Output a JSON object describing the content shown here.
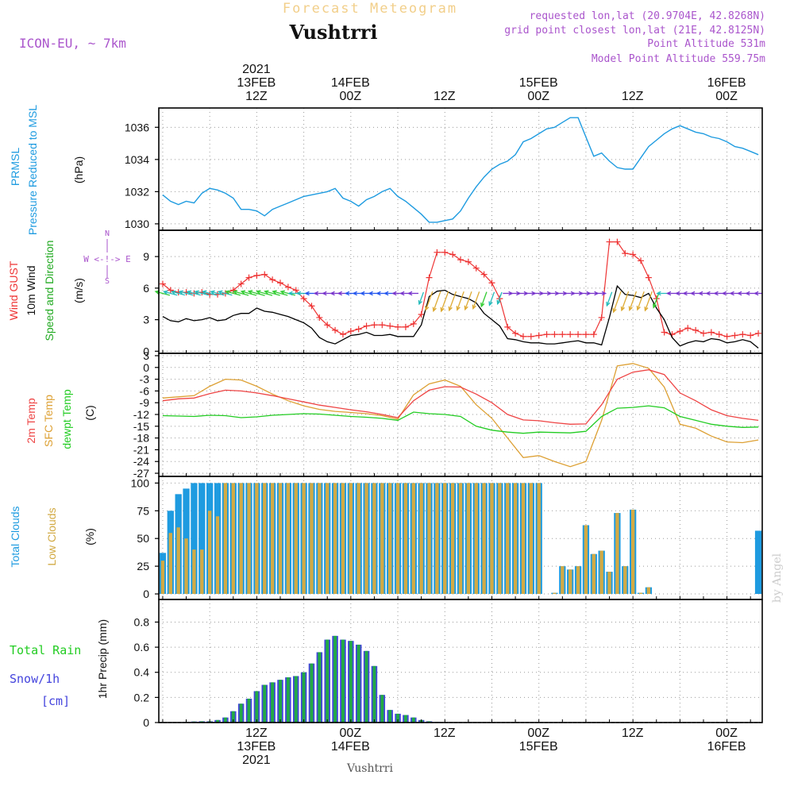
{
  "header": {
    "top_caption": "Forecast Meteogram",
    "location": "Vushtrri",
    "model": "ICON-EU, ~ 7km",
    "requested": "requested lon,lat (20.9704E, 42.8268N)",
    "grid_point": "grid point closest lon,lat (21E, 42.8125N)",
    "point_altitude": "Point Altitude 531m",
    "model_altitude": "Model Point Altitude 559.75m",
    "footer_location": "Vushtrri",
    "watermark": "by Angel"
  },
  "colors": {
    "pressure": "#1e9be0",
    "gust": "#ee3333",
    "wind": "#000000",
    "t2m": "#ee4444",
    "tsfc": "#dda033",
    "dewpt": "#22cc22",
    "total_clouds": "#1e9be0",
    "low_clouds": "#d2aa44",
    "precip": "#22aa44",
    "snow": "#4444dd",
    "annotation": "#aa55cc"
  },
  "time_axis": {
    "top_labels": [
      {
        "h": 12,
        "lines": [
          "2021",
          "13FEB",
          "12Z"
        ]
      },
      {
        "h": 24,
        "lines": [
          "14FEB",
          "00Z"
        ]
      },
      {
        "h": 36,
        "lines": [
          "12Z"
        ]
      },
      {
        "h": 48,
        "lines": [
          "15FEB",
          "00Z"
        ]
      },
      {
        "h": 60,
        "lines": [
          "12Z"
        ]
      },
      {
        "h": 72,
        "lines": [
          "16FEB",
          "00Z"
        ]
      }
    ],
    "bottom_labels": [
      {
        "h": 12,
        "lines": [
          "12Z",
          "13FEB",
          "2021"
        ]
      },
      {
        "h": 24,
        "lines": [
          "00Z",
          "14FEB"
        ]
      },
      {
        "h": 36,
        "lines": [
          "12Z"
        ]
      },
      {
        "h": 48,
        "lines": [
          "00Z",
          "15FEB"
        ]
      },
      {
        "h": 60,
        "lines": [
          "12Z"
        ]
      },
      {
        "h": 72,
        "lines": [
          "00Z",
          "16FEB"
        ]
      }
    ]
  },
  "panel_labels": {
    "pressure": {
      "name": "PRMSL",
      "desc": "Pressure Reduced to MSL",
      "unit": "(hPa)"
    },
    "wind": {
      "gust": "Wind GUST",
      "wind10": "10m Wind",
      "dir": "Speed and Direction",
      "unit": "(m/s)",
      "compass_n": "N",
      "compass_s": "S",
      "compass_we": "W <-!-> E"
    },
    "temp": {
      "t2m": "2m Temp",
      "tsfc": "SFC Temp",
      "dewpt": "dewpt Temp",
      "unit": "(C)"
    },
    "clouds": {
      "total": "Total Clouds",
      "low": "Low Clouds",
      "unit": "(%)"
    },
    "precip": {
      "rain": "Total Rain",
      "snow": "Snow/1h",
      "snow_unit": "[cm]",
      "ylabel": "1hr Precip (mm)"
    }
  },
  "chart_data": [
    {
      "type": "line",
      "name": "pressure",
      "ylabel": "(hPa)",
      "ylim": [
        1029.6,
        1037.2
      ],
      "yticks": [
        1030,
        1032,
        1034,
        1036
      ],
      "x": [
        0,
        1,
        2,
        3,
        4,
        5,
        6,
        7,
        8,
        9,
        10,
        11,
        12,
        13,
        14,
        15,
        16,
        17,
        18,
        19,
        20,
        21,
        22,
        23,
        24,
        25,
        26,
        27,
        28,
        29,
        30,
        31,
        32,
        33,
        34,
        35,
        36,
        37,
        38,
        39,
        40,
        41,
        42,
        43,
        44,
        45,
        46,
        47,
        48,
        49,
        50,
        51,
        52,
        53,
        54,
        55,
        56,
        57,
        58,
        59,
        60,
        61,
        62,
        63,
        64,
        65,
        66,
        67,
        68,
        69,
        70,
        71,
        72,
        73,
        74,
        75,
        76
      ],
      "series": [
        {
          "values": [
            1031.8,
            1031.4,
            1031.2,
            1031.4,
            1031.3,
            1031.9,
            1032.2,
            1032.1,
            1031.9,
            1031.6,
            1030.9,
            1030.9,
            1030.8,
            1030.5,
            1030.9,
            1031.1,
            1031.3,
            1031.5,
            1031.7,
            1031.8,
            1031.9,
            1032.0,
            1032.2,
            1031.6,
            1031.4,
            1031.1,
            1031.5,
            1031.7,
            1032.0,
            1032.2,
            1031.7,
            1031.4,
            1031.0,
            1030.6,
            1030.1,
            1030.1,
            1030.2,
            1030.3,
            1030.8,
            1031.6,
            1032.3,
            1032.9,
            1033.4,
            1033.7,
            1033.9,
            1034.3,
            1035.1,
            1035.3,
            1035.6,
            1035.9,
            1036.0,
            1036.3,
            1036.6,
            1036.6,
            1035.4,
            1034.2,
            1034.4,
            1033.9,
            1033.5,
            1033.4,
            1033.4,
            1034.1,
            1034.8,
            1035.2,
            1035.6,
            1035.9,
            1036.1,
            1035.9,
            1035.7,
            1035.6,
            1035.4,
            1035.3,
            1035.1,
            1034.8,
            1034.7,
            1034.5,
            1034.3
          ]
        }
      ]
    },
    {
      "type": "line",
      "name": "wind",
      "ylabel": "(m/s)",
      "ylim": [
        -0.2,
        11.5
      ],
      "yticks": [
        0,
        3,
        6,
        9
      ],
      "x": [
        0,
        1,
        2,
        3,
        4,
        5,
        6,
        7,
        8,
        9,
        10,
        11,
        12,
        13,
        14,
        15,
        16,
        17,
        18,
        19,
        20,
        21,
        22,
        23,
        24,
        25,
        26,
        27,
        28,
        29,
        30,
        31,
        32,
        33,
        34,
        35,
        36,
        37,
        38,
        39,
        40,
        41,
        42,
        43,
        44,
        45,
        46,
        47,
        48,
        49,
        50,
        51,
        52,
        53,
        54,
        55,
        56,
        57,
        58,
        59,
        60,
        61,
        62,
        63,
        64,
        65,
        66,
        67,
        68,
        69,
        70,
        71,
        72,
        73,
        74,
        75,
        76
      ],
      "series": [
        {
          "values": [
            6.4,
            5.8,
            5.6,
            5.6,
            5.5,
            5.6,
            5.4,
            5.4,
            5.5,
            5.8,
            6.4,
            7.0,
            7.2,
            7.3,
            6.8,
            6.5,
            6.1,
            5.8,
            5.0,
            4.3,
            3.2,
            2.5,
            2.0,
            1.6,
            1.9,
            2.1,
            2.4,
            2.5,
            2.5,
            2.4,
            2.3,
            2.3,
            2.6,
            3.5,
            7.0,
            9.4,
            9.4,
            9.2,
            8.7,
            8.5,
            7.9,
            7.3,
            6.5,
            5.0,
            2.3,
            1.7,
            1.4,
            1.4,
            1.5,
            1.6,
            1.6,
            1.6,
            1.6,
            1.6,
            1.6,
            1.6,
            3.2,
            10.4,
            10.4,
            9.3,
            9.2,
            8.6,
            7.0,
            5.0,
            1.8,
            1.6,
            1.9,
            2.2,
            2.0,
            1.7,
            1.8,
            1.6,
            1.4,
            1.5,
            1.6,
            1.5,
            1.7
          ]
        },
        {
          "values": [
            3.3,
            2.9,
            2.8,
            3.1,
            2.9,
            3.0,
            3.2,
            2.9,
            3.0,
            3.4,
            3.6,
            3.6,
            4.1,
            3.8,
            3.7,
            3.5,
            3.3,
            3.0,
            2.7,
            2.2,
            1.3,
            0.9,
            0.7,
            1.1,
            1.5,
            1.6,
            1.8,
            1.5,
            1.5,
            1.6,
            1.4,
            1.4,
            1.4,
            2.5,
            5.2,
            5.7,
            5.8,
            5.4,
            5.2,
            5.0,
            4.6,
            3.6,
            3.0,
            2.4,
            1.2,
            1.1,
            0.9,
            0.8,
            0.8,
            0.7,
            0.7,
            0.8,
            0.9,
            1.0,
            0.8,
            0.8,
            0.6,
            3.2,
            6.2,
            5.4,
            5.3,
            5.1,
            5.5,
            4.1,
            3.0,
            1.3,
            0.5,
            0.8,
            1.0,
            0.9,
            1.2,
            1.1,
            0.8,
            0.9,
            1.1,
            0.9,
            0.3
          ]
        }
      ]
    },
    {
      "type": "line",
      "name": "temperature",
      "ylabel": "(C)",
      "ylim": [
        -27.8,
        3.6
      ],
      "yticks": [
        3,
        0,
        -3,
        -6,
        -9,
        -12,
        -15,
        -18,
        -21,
        -24,
        -27
      ],
      "x": [
        0,
        2,
        4,
        6,
        8,
        10,
        12,
        14,
        16,
        18,
        20,
        22,
        24,
        26,
        28,
        30,
        32,
        34,
        36,
        38,
        40,
        42,
        44,
        46,
        48,
        50,
        52,
        54,
        56,
        58,
        60,
        62,
        64,
        66,
        68,
        70,
        72,
        74,
        76
      ],
      "series": [
        {
          "values": [
            -8.5,
            -8.0,
            -7.8,
            -6.7,
            -5.8,
            -6.0,
            -6.5,
            -7.2,
            -8.0,
            -8.8,
            -9.6,
            -10.2,
            -10.8,
            -11.3,
            -12.0,
            -12.8,
            -8.5,
            -5.8,
            -4.9,
            -5.0,
            -6.8,
            -9.0,
            -12.0,
            -13.4,
            -13.6,
            -14.1,
            -14.5,
            -14.4,
            -9.5,
            -3.0,
            -1.2,
            -0.6,
            -1.8,
            -6.5,
            -8.5,
            -10.8,
            -12.3,
            -13.0,
            -13.5
          ]
        },
        {
          "values": [
            -7.8,
            -7.5,
            -7.2,
            -4.8,
            -3.0,
            -3.2,
            -4.8,
            -6.8,
            -8.5,
            -9.8,
            -10.7,
            -11.2,
            -11.5,
            -11.8,
            -12.3,
            -13.2,
            -7.0,
            -4.2,
            -3.2,
            -4.8,
            -9.5,
            -13.0,
            -18.0,
            -23.0,
            -22.5,
            -24.0,
            -25.3,
            -24.0,
            -13.5,
            0.4,
            1.0,
            -0.2,
            -5.0,
            -14.5,
            -15.5,
            -17.5,
            -19.0,
            -19.2,
            -18.5
          ]
        },
        {
          "values": [
            -12.3,
            -12.4,
            -12.5,
            -12.2,
            -12.3,
            -12.8,
            -12.6,
            -12.2,
            -12.0,
            -11.8,
            -11.9,
            -12.2,
            -12.5,
            -12.7,
            -13.0,
            -13.5,
            -11.4,
            -11.8,
            -12.0,
            -12.5,
            -15.0,
            -16.0,
            -16.5,
            -16.8,
            -16.5,
            -16.6,
            -16.7,
            -16.3,
            -12.5,
            -10.4,
            -10.2,
            -9.8,
            -10.3,
            -12.5,
            -13.5,
            -14.5,
            -15.0,
            -15.3,
            -15.2
          ]
        }
      ]
    },
    {
      "type": "bar",
      "name": "clouds",
      "ylabel": "(%)",
      "ylim": [
        -5,
        106
      ],
      "yticks": [
        0,
        25,
        50,
        75,
        100
      ],
      "x": [
        0,
        1,
        2,
        3,
        4,
        5,
        6,
        7,
        8,
        9,
        10,
        11,
        12,
        13,
        14,
        15,
        16,
        17,
        18,
        19,
        20,
        21,
        22,
        23,
        24,
        25,
        26,
        27,
        28,
        29,
        30,
        31,
        32,
        33,
        34,
        35,
        36,
        37,
        38,
        39,
        40,
        41,
        42,
        43,
        44,
        45,
        46,
        47,
        48,
        49,
        50,
        51,
        52,
        53,
        54,
        55,
        56,
        57,
        58,
        59,
        60,
        61,
        62,
        63,
        64,
        65,
        66,
        67,
        68,
        69,
        70,
        71,
        72,
        73,
        74,
        75,
        76
      ],
      "series": [
        {
          "values": [
            37,
            75,
            90,
            95,
            100,
            100,
            100,
            100,
            100,
            100,
            100,
            100,
            100,
            100,
            100,
            100,
            100,
            100,
            100,
            100,
            100,
            100,
            100,
            100,
            100,
            100,
            100,
            100,
            100,
            100,
            100,
            100,
            100,
            100,
            100,
            100,
            100,
            100,
            100,
            100,
            100,
            100,
            100,
            100,
            100,
            100,
            100,
            100,
            100,
            0,
            1,
            25,
            22,
            25,
            62,
            36,
            39,
            20,
            73,
            25,
            76,
            1,
            6,
            0,
            0,
            0,
            0,
            0,
            0,
            0,
            0,
            0,
            0,
            0,
            0,
            0,
            57
          ]
        },
        {
          "values": [
            30,
            55,
            60,
            50,
            40,
            40,
            75,
            70,
            100,
            100,
            100,
            100,
            100,
            100,
            100,
            100,
            100,
            100,
            100,
            100,
            100,
            100,
            100,
            100,
            100,
            100,
            100,
            100,
            100,
            100,
            100,
            100,
            100,
            100,
            100,
            100,
            100,
            100,
            100,
            100,
            100,
            100,
            100,
            100,
            100,
            100,
            100,
            100,
            100,
            0,
            1,
            25,
            22,
            25,
            62,
            36,
            39,
            20,
            73,
            25,
            76,
            1,
            6,
            0,
            0,
            0,
            0,
            0,
            0,
            0,
            0,
            0,
            0,
            0,
            0,
            0,
            0
          ]
        }
      ]
    },
    {
      "type": "bar",
      "name": "precip",
      "ylabel": "1hr Precip (mm)",
      "ylim": [
        0,
        0.98
      ],
      "yticks": [
        0,
        0.2,
        0.4,
        0.6,
        0.8
      ],
      "x": [
        0,
        1,
        2,
        3,
        4,
        5,
        6,
        7,
        8,
        9,
        10,
        11,
        12,
        13,
        14,
        15,
        16,
        17,
        18,
        19,
        20,
        21,
        22,
        23,
        24,
        25,
        26,
        27,
        28,
        29,
        30,
        31,
        32,
        33,
        34,
        35,
        36,
        37,
        38,
        39,
        40,
        41,
        42,
        43,
        44,
        45,
        46,
        47,
        48,
        49,
        50,
        51,
        52,
        53,
        54,
        55,
        56,
        57,
        58,
        59,
        60,
        61,
        62,
        63,
        64,
        65,
        66,
        67,
        68,
        69,
        70,
        71,
        72,
        73,
        74,
        75,
        76
      ],
      "series": [
        {
          "values": [
            0,
            0,
            0,
            0.005,
            0.008,
            0.01,
            0.01,
            0.02,
            0.04,
            0.09,
            0.15,
            0.19,
            0.25,
            0.3,
            0.32,
            0.34,
            0.36,
            0.37,
            0.4,
            0.47,
            0.56,
            0.66,
            0.69,
            0.66,
            0.65,
            0.62,
            0.57,
            0.45,
            0.22,
            0.1,
            0.07,
            0.06,
            0.04,
            0.02,
            0.01,
            0.005,
            0,
            0,
            0,
            0,
            0,
            0,
            0,
            0,
            0,
            0,
            0,
            0,
            0,
            0,
            0,
            0,
            0,
            0,
            0,
            0,
            0,
            0,
            0,
            0,
            0,
            0,
            0,
            0,
            0,
            0,
            0,
            0,
            0,
            0,
            0,
            0,
            0,
            0,
            0,
            0,
            0
          ]
        }
      ]
    }
  ]
}
